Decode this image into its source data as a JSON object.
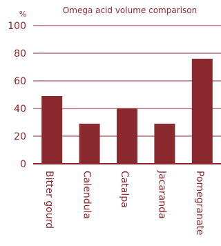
{
  "chart_data": {
    "type": "bar",
    "title": "Omega acid volume comparison",
    "unit": "%",
    "categories": [
      "Bitter gourd",
      "Calendula",
      "Catalpa",
      "Jacaranda",
      "Pomegranate"
    ],
    "values": [
      49,
      29,
      40,
      29,
      76
    ],
    "yticks": [
      0,
      20,
      40,
      60,
      80,
      100
    ],
    "ylim": [
      0,
      100
    ],
    "grid": "horizontal",
    "bar_color": "#8b2a2e",
    "grid_color": "#8b2a2e",
    "text_color": "#8b2a2e"
  }
}
